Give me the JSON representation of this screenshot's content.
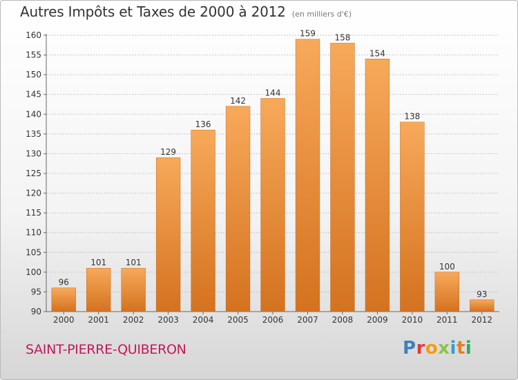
{
  "title": "Autres Impôts et Taxes de 2000 à 2012",
  "subtitle": "(en milliers d'€)",
  "commune": "SAINT-PIERRE-QUIBERON",
  "logo": {
    "text": "Proxiti"
  },
  "colors": {
    "bar_top": "#f7a95a",
    "bar_bottom": "#d4721f",
    "grid": "#c4c4c4",
    "commune": "#c2185b"
  },
  "chart_data": {
    "type": "bar",
    "title": "Autres Impôts et Taxes de 2000 à 2012",
    "subtitle": "(en milliers d'€)",
    "xlabel": "",
    "ylabel": "",
    "categories": [
      "2000",
      "2001",
      "2002",
      "2003",
      "2004",
      "2005",
      "2006",
      "2007",
      "2008",
      "2009",
      "2010",
      "2011",
      "2012"
    ],
    "values": [
      96,
      101,
      101,
      129,
      136,
      142,
      144,
      159,
      158,
      154,
      138,
      100,
      93
    ],
    "ylim": [
      90,
      160
    ],
    "yticks": [
      90,
      95,
      100,
      105,
      110,
      115,
      120,
      125,
      130,
      135,
      140,
      145,
      150,
      155,
      160
    ],
    "grid": true,
    "legend": "none"
  }
}
